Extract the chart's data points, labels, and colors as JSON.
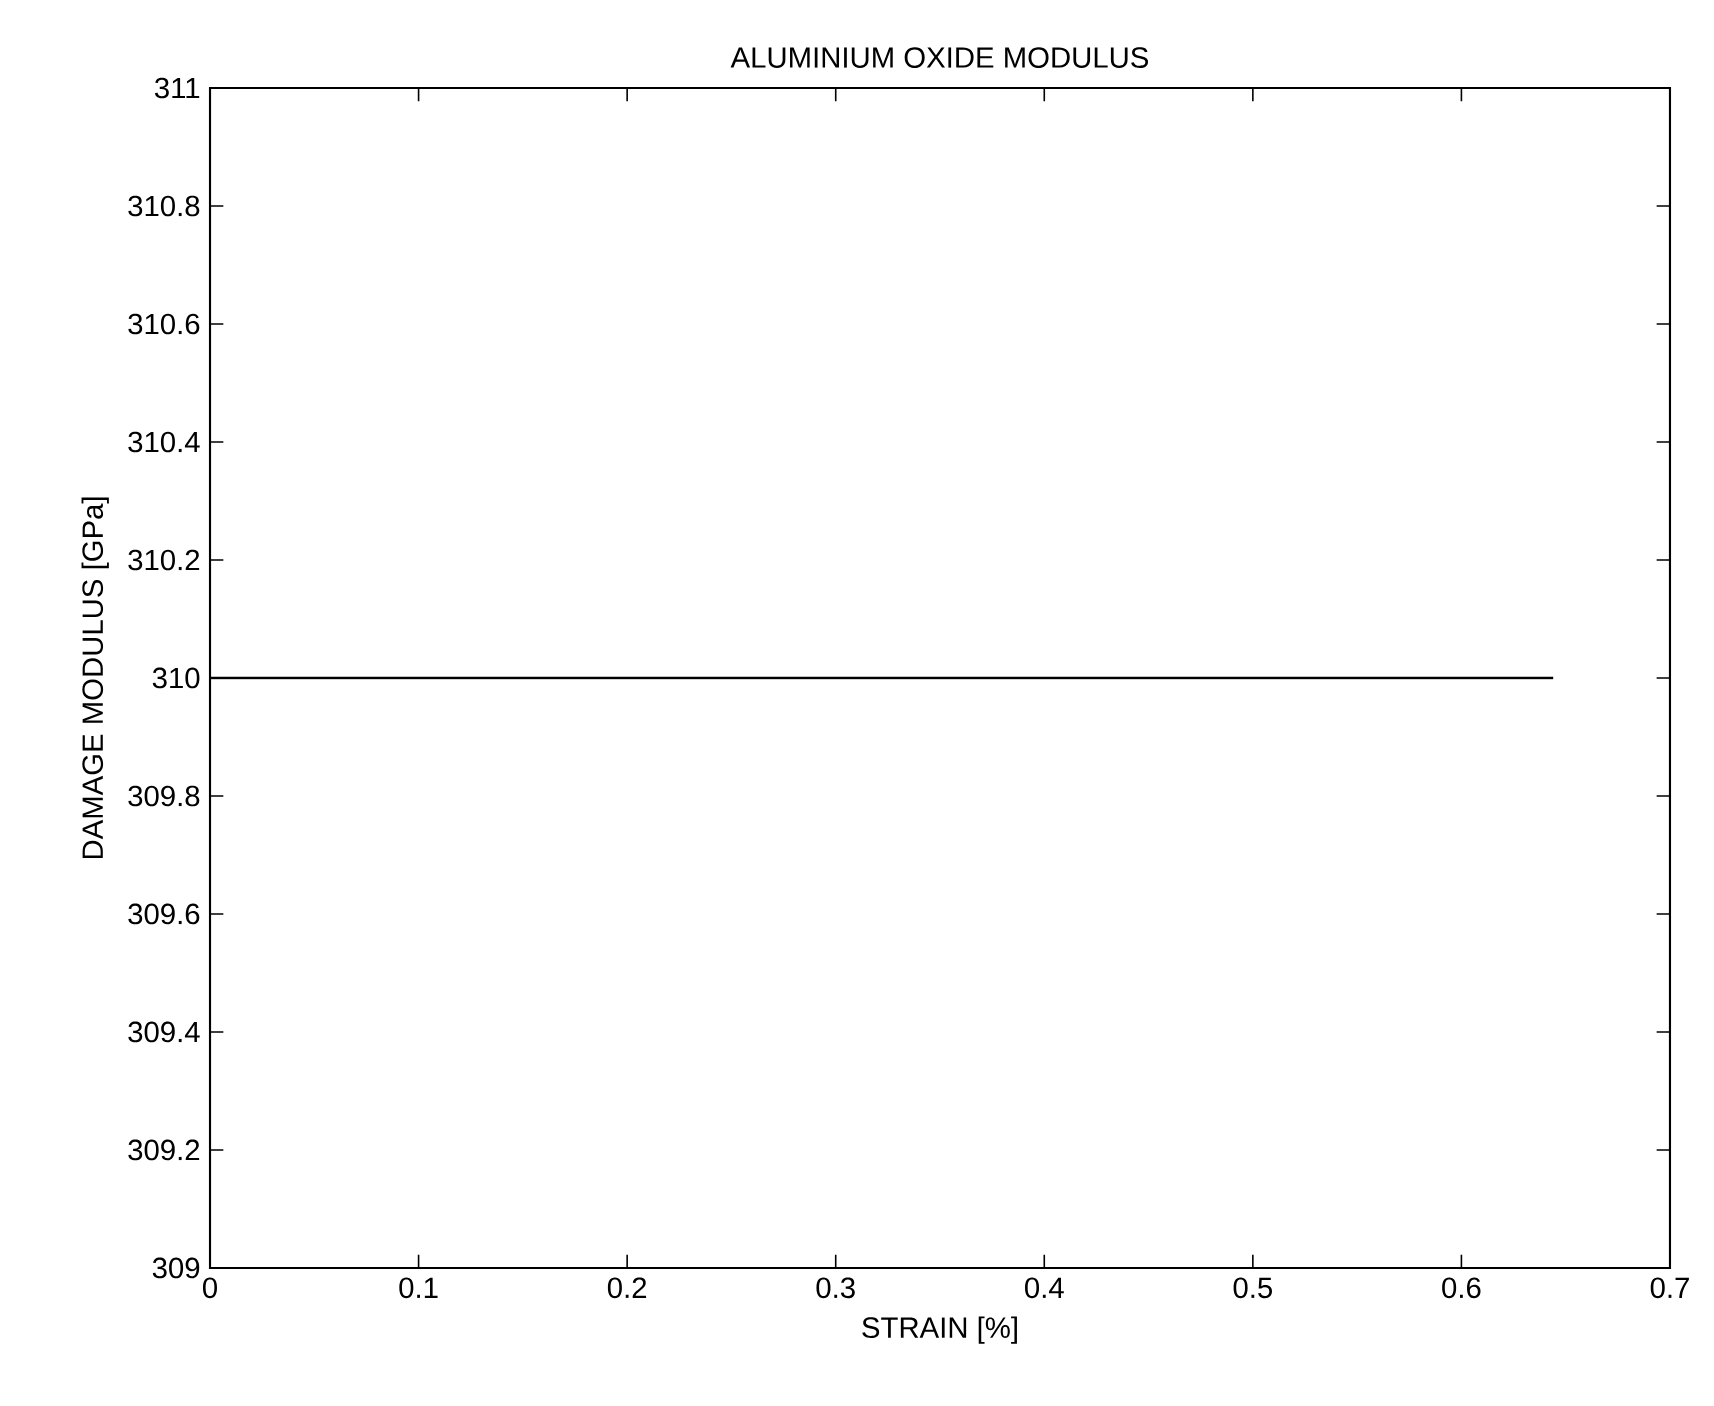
{
  "chart_data": {
    "type": "line",
    "title": "ALUMINIUM OXIDE MODULUS",
    "xlabel": "STRAIN [%]",
    "ylabel": "DAMAGE MODULUS [GPa]",
    "x": [
      0,
      0.644
    ],
    "series": [
      {
        "color": "#000000",
        "values": [
          310,
          310
        ]
      }
    ],
    "xlim": [
      0,
      0.7
    ],
    "xticks": [
      0,
      0.1,
      0.2,
      0.3,
      0.4,
      0.5,
      0.6,
      0.7
    ],
    "ylim": [
      309,
      311
    ],
    "yticks": [
      309,
      309.2,
      309.4,
      309.6,
      309.8,
      310,
      310.2,
      310.4,
      310.6,
      310.8,
      311
    ],
    "grid": false,
    "marker": "none",
    "line_style": "solid"
  }
}
